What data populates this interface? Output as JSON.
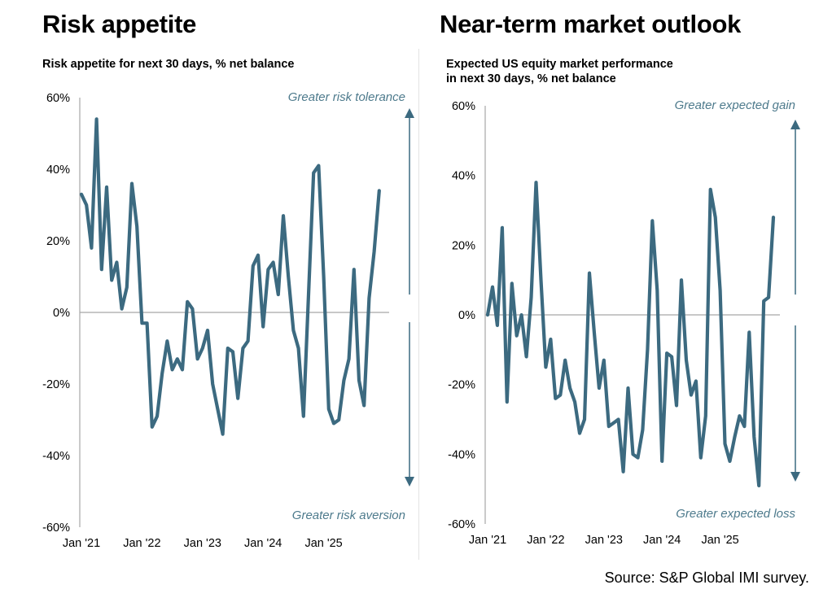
{
  "left": {
    "title": "Risk appetite",
    "subtitle": "Risk appetite for next 30 days, % net balance"
  },
  "right": {
    "title": "Near-term market outlook",
    "subtitle_line1": "Expected US equity market performance",
    "subtitle_line2": "in next 30 days, % net balance"
  },
  "source": "Source: S&P Global IMI survey.",
  "colors": {
    "line": "#3c6a80",
    "axis": "#a6a6a6",
    "arrow": "#3c6a80",
    "note": "#4d7a8c"
  },
  "chart_data": [
    {
      "type": "line",
      "title": "Risk appetite for next 30 days, % net balance",
      "x_tick_labels": [
        "Jan '21",
        "Jan '22",
        "Jan '23",
        "Jan '24",
        "Jan '25"
      ],
      "y_tick_labels": [
        "60%",
        "40%",
        "20%",
        "0%",
        "-20%",
        "-40%",
        "-60%"
      ],
      "ylim": [
        -60,
        60
      ],
      "x_start": "Jan 2021",
      "x_step": "month",
      "annotations": {
        "top": "Greater risk tolerance",
        "bottom": "Greater risk aversion"
      },
      "values": [
        33,
        30,
        18,
        54,
        12,
        35,
        9,
        14,
        1,
        7,
        36,
        24,
        -3,
        -3,
        -32,
        -29,
        -17,
        -8,
        -16,
        -13,
        -16,
        3,
        1,
        -13,
        -10,
        -5,
        -20,
        -27,
        -34,
        -10,
        -11,
        -24,
        -10,
        -8,
        13,
        16,
        -4,
        12,
        14,
        5,
        27,
        10,
        -5,
        -10,
        -29,
        5,
        39,
        41,
        10,
        -27,
        -31,
        -30,
        -19,
        -13,
        12,
        -19,
        -26,
        4,
        17,
        34
      ]
    },
    {
      "type": "line",
      "title": "Expected US equity market performance in next 30 days, % net balance",
      "x_tick_labels": [
        "Jan '21",
        "Jan '22",
        "Jan '23",
        "Jan '24",
        "Jan '25"
      ],
      "y_tick_labels": [
        "60%",
        "40%",
        "20%",
        "0%",
        "-20%",
        "-40%",
        "-60%"
      ],
      "ylim": [
        -60,
        60
      ],
      "x_start": "Jan 2021",
      "x_step": "month",
      "annotations": {
        "top": "Greater expected gain",
        "bottom": "Greater  expected loss"
      },
      "values": [
        0,
        8,
        -3,
        25,
        -25,
        9,
        -6,
        0,
        -12,
        5,
        38,
        10,
        -15,
        -7,
        -24,
        -23,
        -13,
        -21,
        -25,
        -34,
        -30,
        12,
        -5,
        -21,
        -13,
        -32,
        -31,
        -30,
        -45,
        -21,
        -40,
        -41,
        -33,
        -10,
        27,
        7,
        -42,
        -11,
        -12,
        -26,
        10,
        -13,
        -23,
        -19,
        -41,
        -29,
        36,
        28,
        7,
        -37,
        -42,
        -35,
        -29,
        -32,
        -5,
        -35,
        -49,
        4,
        5,
        28
      ]
    }
  ]
}
